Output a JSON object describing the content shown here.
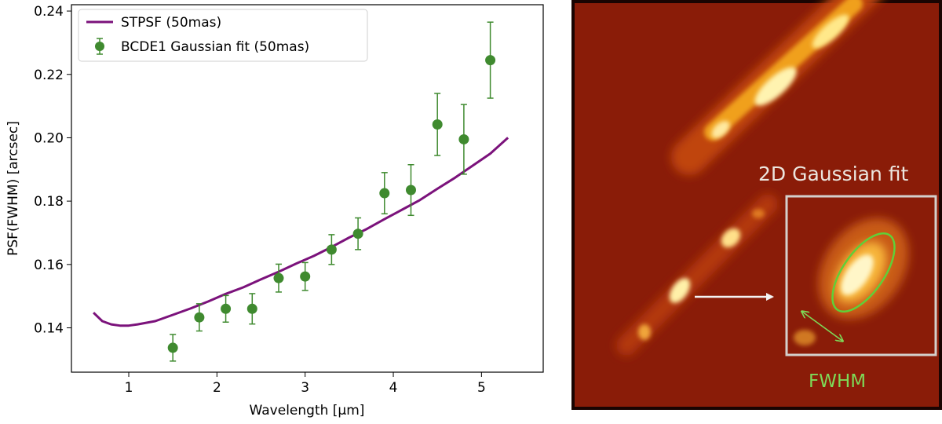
{
  "chart_data": {
    "type": "scatter",
    "xlabel": "Wavelength [μm]",
    "ylabel": "PSF(FWHM) [arcsec]",
    "xlim": [
      0.35,
      5.7
    ],
    "ylim": [
      0.126,
      0.242
    ],
    "xticks": [
      "1",
      "2",
      "3",
      "4",
      "5"
    ],
    "xtick_values": [
      1,
      2,
      3,
      4,
      5
    ],
    "yticks": [
      "0.14",
      "0.16",
      "0.18",
      "0.20",
      "0.22",
      "0.24"
    ],
    "ytick_values": [
      0.14,
      0.16,
      0.18,
      0.2,
      0.22,
      0.24
    ],
    "legend_position": "top-left",
    "series": [
      {
        "name": "STPSF (50mas)",
        "kind": "line",
        "color": "#7b127b",
        "x": [
          0.6,
          0.7,
          0.8,
          0.9,
          1.0,
          1.1,
          1.3,
          1.5,
          1.7,
          1.9,
          2.1,
          2.3,
          2.5,
          2.7,
          2.9,
          3.1,
          3.3,
          3.5,
          3.7,
          3.9,
          4.1,
          4.3,
          4.5,
          4.7,
          4.9,
          5.1,
          5.3
        ],
        "y": [
          0.1448,
          0.1421,
          0.1411,
          0.1407,
          0.1407,
          0.1411,
          0.1421,
          0.1441,
          0.1461,
          0.1483,
          0.1507,
          0.1528,
          0.1553,
          0.1577,
          0.1603,
          0.1627,
          0.1655,
          0.1685,
          0.1712,
          0.1743,
          0.1773,
          0.1803,
          0.1839,
          0.1874,
          0.1912,
          0.195,
          0.2
        ]
      },
      {
        "name": "BCDE1 Gaussian fit (50mas)",
        "kind": "errorbar",
        "color": "#3f8a2f",
        "x": [
          1.5,
          1.8,
          2.1,
          2.4,
          2.7,
          3.0,
          3.3,
          3.6,
          3.9,
          4.2,
          4.5,
          4.8,
          5.1
        ],
        "y": [
          0.1337,
          0.1433,
          0.146,
          0.146,
          0.1557,
          0.1562,
          0.1647,
          0.1697,
          0.1825,
          0.1835,
          0.2042,
          0.1995,
          0.2245
        ],
        "err": [
          0.0042,
          0.0043,
          0.0042,
          0.0048,
          0.0044,
          0.0044,
          0.0047,
          0.005,
          0.0065,
          0.008,
          0.0098,
          0.011,
          0.012
        ]
      }
    ]
  },
  "image_panel": {
    "fit_label": "2D Gaussian fit",
    "fwhm_label": "FWHM",
    "fwhm_color": "#7ed957",
    "fit_label_color": "#ece6df"
  }
}
